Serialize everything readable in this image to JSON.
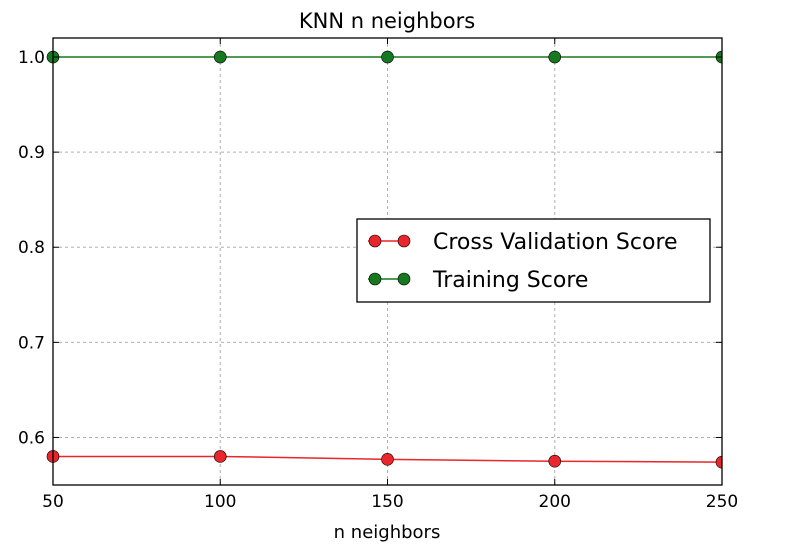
{
  "chart_data": {
    "type": "line",
    "title": "KNN n neighbors",
    "xlabel": "n neighbors",
    "ylabel": "",
    "x": [
      50,
      100,
      150,
      200,
      250
    ],
    "xlim": [
      50,
      250
    ],
    "ylim": [
      0.55,
      1.02
    ],
    "xticks": [
      50,
      100,
      150,
      200,
      250
    ],
    "yticks": [
      0.6,
      0.7,
      0.8,
      0.9,
      1.0
    ],
    "xtick_labels": [
      "50",
      "100",
      "150",
      "200",
      "250"
    ],
    "ytick_labels": [
      "0.6",
      "0.7",
      "0.8",
      "0.9",
      "1.0"
    ],
    "grid": true,
    "legend_position": "center-right",
    "series": [
      {
        "name": "Cross Validation Score",
        "color": "#e8262b",
        "values": [
          0.58,
          0.58,
          0.577,
          0.575,
          0.574
        ]
      },
      {
        "name": "Training Score",
        "color": "#17781f",
        "values": [
          1.0,
          1.0,
          1.0,
          1.0,
          1.0
        ]
      }
    ]
  }
}
